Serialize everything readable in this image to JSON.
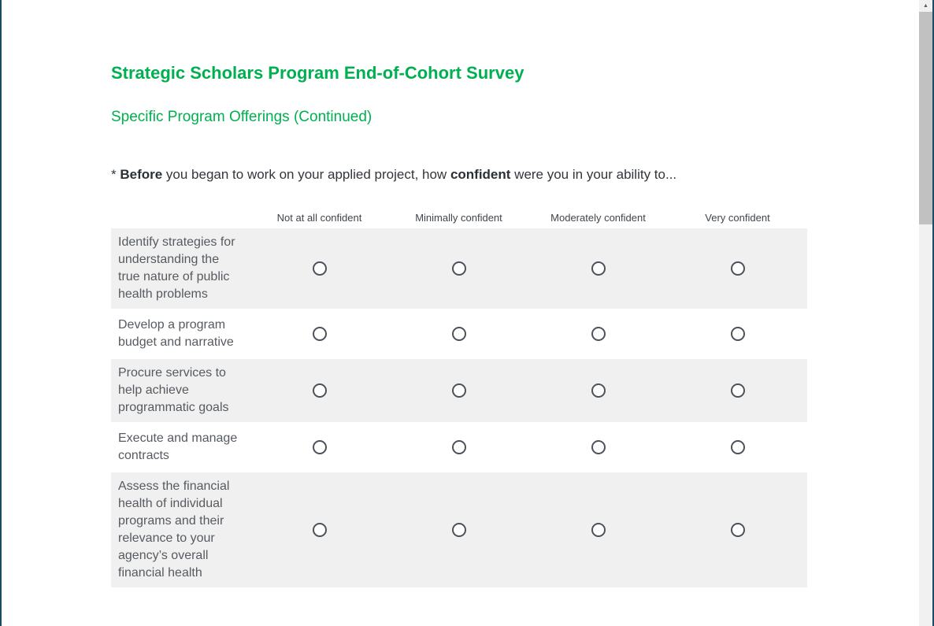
{
  "survey": {
    "title": "Strategic Scholars Program End-of-Cohort Survey",
    "section_title": "Specific Program Offerings (Continued)",
    "question": {
      "prefix": "* ",
      "bold_1": "Before",
      "middle": " you began to work on your applied project, how ",
      "bold_2": "confident",
      "suffix": " were you in your ability to..."
    },
    "matrix": {
      "columns": [
        "Not at all confident",
        "Minimally confident",
        "Moderately confident",
        "Very confident"
      ],
      "rows": [
        {
          "label": "Identify strategies for understanding the true nature of public health problems",
          "selected": null
        },
        {
          "label": "Develop a program budget and narrative",
          "selected": null
        },
        {
          "label": "Procure services to help achieve programmatic goals",
          "selected": null
        },
        {
          "label": "Execute and manage contracts",
          "selected": null
        },
        {
          "label": "Assess the financial health of individual programs and their relevance to your agency’s overall financial health",
          "selected": null
        }
      ]
    }
  },
  "scrollbar": {
    "up_arrow_icon": "▲"
  },
  "colors": {
    "accent_green": "#00b050",
    "row_alt_bg": "#f0f0f0",
    "border_blue": "#1d4b66",
    "scrollbar_thumb": "#c1c1c1"
  }
}
